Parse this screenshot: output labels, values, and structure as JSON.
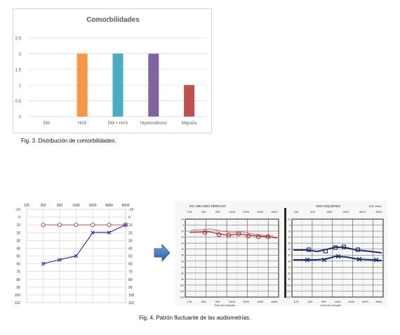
{
  "fig3": {
    "caption": "Fig. 3. Distribución de comorbilidades.",
    "chart_data": {
      "type": "bar",
      "title": "Comorbilidades",
      "categories": [
        "DM",
        "HAS",
        "DM + HAS",
        "Hipotiroidismo",
        "Migraña"
      ],
      "values": [
        0,
        2,
        2,
        2,
        1
      ],
      "colors": [
        "#4472c4",
        "#f79646",
        "#4bacc6",
        "#8064a2",
        "#c0504d"
      ],
      "yticks": [
        "0",
        "0.5",
        "1",
        "1.5",
        "2",
        "2.5"
      ],
      "ylim": [
        0,
        2.5
      ],
      "grid": true,
      "legend": "none"
    }
  },
  "fig4": {
    "caption": "Fig. 4. Patrón fluctuante de las audiometrías.",
    "audiogram": {
      "chart_data": {
        "type": "line",
        "x_categories": [
          "125",
          "250",
          "500",
          "1000",
          "2000",
          "4000",
          "8000"
        ],
        "y_ticks": [
          "-10",
          "0",
          "10",
          "20",
          "30",
          "40",
          "50",
          "60",
          "70",
          "80",
          "90",
          "100",
          "110"
        ],
        "ylim": [
          -10,
          110
        ],
        "y_inverted": true,
        "grid": true,
        "series": [
          {
            "marker": "circle",
            "color": "#c0392b",
            "x": [
              "250",
              "500",
              "1000",
              "2000",
              "4000",
              "8000"
            ],
            "values": [
              10,
              10,
              10,
              10,
              10,
              10
            ]
          },
          {
            "marker": "x",
            "color": "#2b2b9a",
            "x": [
              "250",
              "500",
              "1000",
              "2000",
              "4000",
              "8000"
            ],
            "values": [
              60,
              55,
              50,
              20,
              20,
              10
            ]
          }
        ]
      }
    },
    "arrow_icon": "right-arrow-icon",
    "photo": {
      "left_header": "ISO 1964     OIDO DERECHO",
      "right_header": "OIDO IZQUIERDO",
      "right_iso": "ISO 1964",
      "left_freqs": [
        "125",
        "250",
        "500",
        "1000",
        "2000",
        "4000",
        "8000"
      ],
      "right_freqs": [
        "250",
        "500",
        "1000",
        "2000",
        "4000",
        "8000"
      ],
      "bottom_left": [
        "125",
        "250",
        "500",
        "1000",
        "2000",
        "4000",
        "8000"
      ],
      "bottom_right": [
        "125",
        "250",
        "500",
        "1000",
        "2000",
        "4000",
        "8000"
      ],
      "zone_label": "Zona del Lenguaje",
      "db_ticks": [
        "-10",
        "0",
        "10",
        "20",
        "30",
        "40",
        "50",
        "60",
        "70",
        "80",
        "90",
        "100",
        "110",
        "120"
      ]
    }
  }
}
